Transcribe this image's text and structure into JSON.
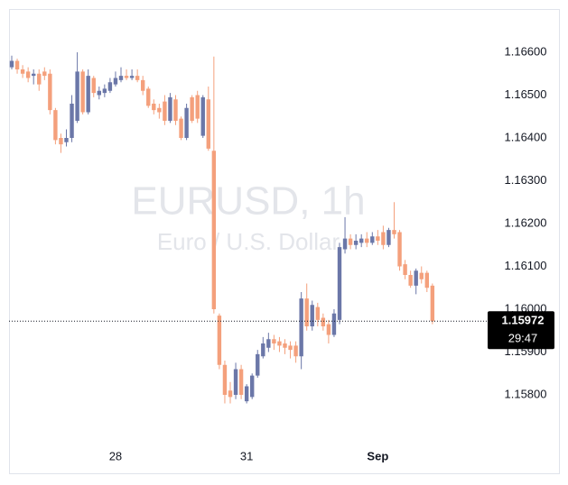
{
  "chart_data": {
    "type": "candlestick",
    "watermark": "EURUSD, 1h",
    "watermark_subtitle": "Euro / U.S. Dollar",
    "up_color": "#6b77a8",
    "down_color": "#f4a07c",
    "categories": [
      null,
      null,
      null,
      null,
      null,
      null,
      null,
      null,
      null,
      null,
      null,
      null,
      null,
      null,
      null,
      null,
      null,
      null,
      null,
      "28",
      null,
      null,
      null,
      null,
      null,
      null,
      null,
      null,
      null,
      null,
      null,
      null,
      null,
      null,
      null,
      null,
      null,
      null,
      null,
      null,
      null,
      null,
      null,
      "31",
      null,
      null,
      null,
      null,
      null,
      null,
      null,
      null,
      null,
      null,
      null,
      null,
      null,
      null,
      null,
      null,
      null,
      null,
      null,
      null,
      null,
      null,
      null,
      "Sep",
      null,
      null,
      null,
      null,
      null,
      null,
      null,
      null,
      null,
      null
    ],
    "open": [
      1.16565,
      1.1658,
      1.1656,
      1.16555,
      1.16545,
      1.1655,
      1.16555,
      1.1655,
      1.16465,
      1.164,
      1.1639,
      1.164,
      1.1644,
      1.16555,
      1.1646,
      1.1654,
      1.165,
      1.16505,
      1.1651,
      1.16525,
      1.16535,
      1.16545,
      1.1654,
      1.16545,
      1.16535,
      1.16515,
      1.1648,
      1.1647,
      1.16485,
      1.1644,
      1.1649,
      1.16445,
      1.164,
      1.16495,
      1.165,
      1.16405,
      1.1649,
      1.1637,
      1.15985,
      1.1587,
      1.1581,
      1.158,
      1.1586,
      1.15785,
      1.15795,
      1.15845,
      1.1589,
      1.1591,
      1.1593,
      1.15925,
      1.1592,
      1.15915,
      1.15915,
      1.1589,
      1.16025,
      1.1596,
      1.16005,
      1.1598,
      1.15965,
      1.1594,
      1.15975,
      1.1614,
      1.16165,
      1.1615,
      1.16155,
      1.16165,
      1.16155,
      1.1617,
      1.1618,
      1.1615,
      1.16185,
      1.1618,
      1.16105,
      1.1608,
      1.16055,
      1.16085,
      1.16085,
      1.16055
    ],
    "high": [
      1.16592,
      1.16585,
      1.1657,
      1.16565,
      1.1656,
      1.1656,
      1.16565,
      1.1656,
      1.1647,
      1.1641,
      1.1642,
      1.165,
      1.166,
      1.1656,
      1.1656,
      1.16545,
      1.1652,
      1.16525,
      1.1654,
      1.16555,
      1.16565,
      1.1656,
      1.1656,
      1.1656,
      1.16545,
      1.1652,
      1.1649,
      1.1648,
      1.165,
      1.16505,
      1.165,
      1.1645,
      1.1648,
      1.165,
      1.1651,
      1.165,
      1.1652,
      1.1659,
      1.1599,
      1.1588,
      1.1583,
      1.15875,
      1.1587,
      1.15825,
      1.1585,
      1.15905,
      1.15935,
      1.15945,
      1.1594,
      1.15935,
      1.1593,
      1.15925,
      1.15925,
      1.1604,
      1.1606,
      1.1602,
      1.16015,
      1.1599,
      1.15975,
      1.16,
      1.16155,
      1.16215,
      1.16175,
      1.16175,
      1.16175,
      1.1618,
      1.1618,
      1.16185,
      1.16195,
      1.1619,
      1.1625,
      1.16185,
      1.16115,
      1.1609,
      1.16095,
      1.161,
      1.1609,
      1.1606
    ],
    "low": [
      1.1656,
      1.1655,
      1.1654,
      1.1653,
      1.16525,
      1.1651,
      1.16535,
      1.16455,
      1.16385,
      1.16365,
      1.1638,
      1.1639,
      1.16435,
      1.16455,
      1.16455,
      1.16495,
      1.1649,
      1.16495,
      1.16505,
      1.1652,
      1.1653,
      1.16535,
      1.16535,
      1.1653,
      1.165,
      1.1647,
      1.16455,
      1.16445,
      1.1643,
      1.16435,
      1.1643,
      1.16395,
      1.16395,
      1.16435,
      1.16435,
      1.164,
      1.1637,
      1.1599,
      1.1586,
      1.1578,
      1.1578,
      1.1579,
      1.1579,
      1.1578,
      1.1579,
      1.1584,
      1.15885,
      1.159,
      1.15905,
      1.159,
      1.15895,
      1.15885,
      1.15875,
      1.1586,
      1.1595,
      1.1595,
      1.1596,
      1.1595,
      1.1592,
      1.15935,
      1.15965,
      1.1613,
      1.1614,
      1.1614,
      1.16145,
      1.16145,
      1.1615,
      1.1615,
      1.1614,
      1.16145,
      1.16165,
      1.1609,
      1.1607,
      1.1605,
      1.16035,
      1.1606,
      1.1604,
      1.15965
    ],
    "close": [
      1.1658,
      1.1656,
      1.1655,
      1.1654,
      1.1655,
      1.16525,
      1.16545,
      1.16465,
      1.16395,
      1.16385,
      1.164,
      1.1648,
      1.16555,
      1.1646,
      1.16545,
      1.16505,
      1.1651,
      1.16515,
      1.1653,
      1.1654,
      1.16545,
      1.1654,
      1.16545,
      1.16535,
      1.1651,
      1.16475,
      1.16465,
      1.1646,
      1.1644,
      1.16495,
      1.1644,
      1.164,
      1.1647,
      1.1644,
      1.16445,
      1.16495,
      1.16375,
      1.16,
      1.1587,
      1.158,
      1.15795,
      1.1586,
      1.158,
      1.1582,
      1.15845,
      1.15895,
      1.1592,
      1.1593,
      1.1592,
      1.15915,
      1.1591,
      1.15905,
      1.1589,
      1.16025,
      1.1596,
      1.1601,
      1.15975,
      1.1596,
      1.1594,
      1.1599,
      1.16145,
      1.16165,
      1.1615,
      1.1616,
      1.16165,
      1.16155,
      1.1617,
      1.1616,
      1.1615,
      1.16185,
      1.16175,
      1.161,
      1.1608,
      1.16055,
      1.1609,
      1.1607,
      1.1605,
      1.15972
    ],
    "ylim": [
      1.1569,
      1.167
    ],
    "yticks": [
      {
        "value": 1.158,
        "label": "1.15800"
      },
      {
        "value": 1.159,
        "label": "1.15900"
      },
      {
        "value": 1.16,
        "label": "1.16000"
      },
      {
        "value": 1.161,
        "label": "1.16100"
      },
      {
        "value": 1.162,
        "label": "1.16200"
      },
      {
        "value": 1.163,
        "label": "1.16300"
      },
      {
        "value": 1.164,
        "label": "1.16400"
      },
      {
        "value": 1.165,
        "label": "1.16500"
      },
      {
        "value": 1.166,
        "label": "1.16600"
      }
    ],
    "last_price": 1.15972,
    "countdown": "29:47"
  }
}
